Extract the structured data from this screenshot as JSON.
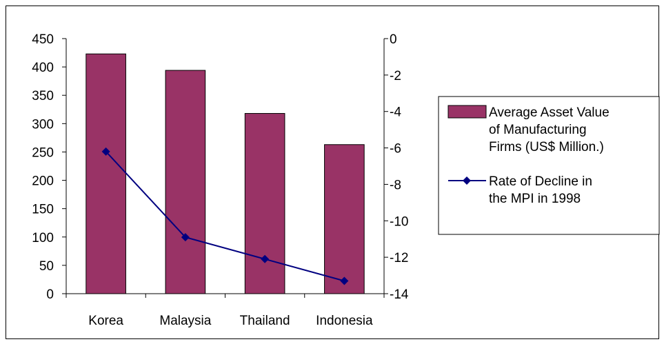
{
  "chart_data": {
    "type": "bar",
    "title": "",
    "categories": [
      "Korea",
      "Malaysia",
      "Thailand",
      "Indonesia"
    ],
    "series": [
      {
        "name": "Average Asset Value of Manufacturing Firms (US$ Million.)",
        "chart_type": "bar",
        "axis": "left",
        "color": "#993366",
        "values": [
          423,
          394,
          318,
          263
        ]
      },
      {
        "name": "Rate of Decline in the MPI in 1998",
        "chart_type": "line",
        "axis": "right",
        "color": "#000080",
        "marker": "diamond",
        "values": [
          -6.2,
          -10.9,
          -12.1,
          -13.3
        ]
      }
    ],
    "y_left": {
      "label": "",
      "ylim": [
        0,
        450
      ],
      "ticks": [
        "0",
        "50",
        "100",
        "150",
        "200",
        "250",
        "300",
        "350",
        "400",
        "450"
      ]
    },
    "y_right": {
      "label": "",
      "ylim": [
        -14,
        0
      ],
      "ticks": [
        "-14",
        "-12",
        "-10",
        "-8",
        "-6",
        "-4",
        "-2",
        "0"
      ]
    },
    "grid": false,
    "legend": {
      "position": "right",
      "entries": [
        {
          "lines": [
            "Average Asset Value",
            "of Manufacturing",
            "Firms (US$ Million.)"
          ]
        },
        {
          "lines": [
            "Rate of Decline in",
            "the MPI in 1998"
          ]
        }
      ]
    }
  }
}
